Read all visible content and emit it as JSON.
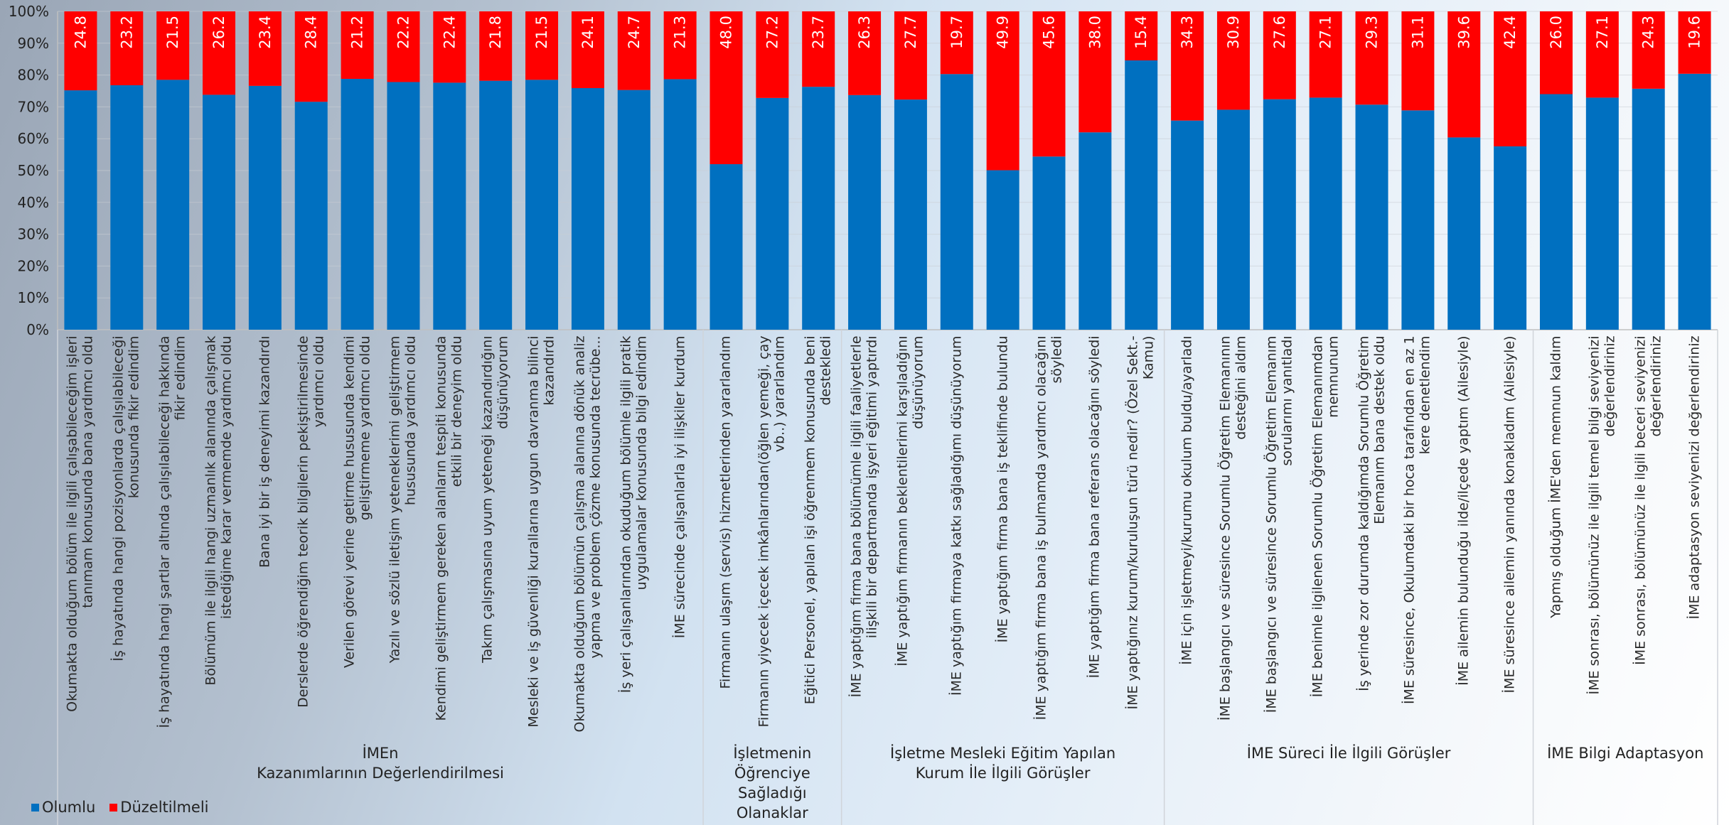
{
  "chart_data": {
    "type": "stacked_bar",
    "groups": [
      {
        "name": "İMEn\nKazanımlarının Değerlendirilmesi",
        "categories": [
          "Okumakta olduğum bölüm ile ilgili çalışabileceğim işleri tanımam konusunda bana yardımcı oldu",
          "İş hayatında hangi pozisyonlarda çalışılabileceği konusunda fikir edindim",
          "İş hayatında hangi şartlar altında çalışılabileceği hakkında fikir edindim",
          "Bölümüm ile ilgili hangi uzmanlık alanında çalışmak istediğime karar vermemde yardımcı oldu",
          "Bana iyi bir iş deneyimi kazandırdı",
          "Derslerde öğrendiğim teorik bilgilerin pekiştirilmesinde yardımcı oldu",
          "Verilen görevi yerine getirme hususunda kendimi geliştirmeme yardımcı oldu",
          "Yazılı ve sözlü iletişim yeteneklerimi geliştirmem hususunda yardımcı oldu",
          "Kendimi geliştirmem gereken alanların tespiti konusunda etkili bir deneyim oldu",
          "Takım çalışmasına uyum yeteneği kazandırdığını düşünüyorum",
          "Mesleki ve iş güvenliği kurallarına uygun davranma bilinci kazandırdı",
          "Okumakta olduğum bölümün çalışma alanına dönük analiz yapma ve problem çözme konusunda tecrübe...",
          "İş yeri çalışanlarından okuduğum bölümle ilgili pratik uygulamalar konusunda bilgi edindim",
          "İME sürecinde çalışanlarla iyi ilişkiler kurdum"
        ]
      },
      {
        "name": "İşletmenin\nÖğrenciye\nSağladığı\nOlanaklar",
        "categories": [
          "Firmanın ulaşım (servis) hizmetlerinden yararlandım",
          "Firmanın yiyecek içecek imkânlarından(öğlen yemeği, çay vb..) yararlandım",
          "Eğitici Personel, yapılan işi öğrenmem konusunda beni destekledi"
        ]
      },
      {
        "name": "İşletme Mesleki Eğitim Yapılan\nKurum İle İlgili Görüşler",
        "categories": [
          "İME yaptığım firma bana bölümümle ilgili faaliyetlerle ilişkili bir departmanda işyeri eğitimi yaptırdı",
          "İME yaptığım firmanın beklentilerimi karşıladığını düşünüyorum",
          "İME  yaptığım firmaya katkı sağladığımı düşünüyorum",
          "İME  yaptığım firma bana iş teklifinde bulundu",
          "İME  yaptığım firma bana iş bulmamda yardımcı olacağını söyledi",
          "İME yaptığım firma bana referans olacağını söyledi",
          "İME yaptığınız kurum/kuruluşun türü nedir? (Özel Sekt.-Kamu)"
        ]
      },
      {
        "name": "İME Süreci İle İlgili Görüşler",
        "categories": [
          "İME için işletmeyi/kurumu okulum buldu/ayarladı",
          "İME başlangıcı ve süresince Sorumlu Öğretim Elemanının desteğini aldım",
          "İME başlangıcı ve süresince Sorumlu Öğretim Elemanım sorularımı yanıtladı",
          "İME benimle ilgilenen Sorumlu Öğretim Elemanımdan memnunum",
          "İş yerinde zor durumda kaldığımda Sorumlu Öğretim Elemanım bana destek oldu",
          "İME süresince, Okulumdaki bir hoca tarafından en az 1 kere denetlendim",
          "İME ailemin bulunduğu ilde/ilçede yaptım (Ailesiyle)",
          "İME süresince ailemin yanında konakladım (Ailesiyle)"
        ]
      },
      {
        "name": "İME Bilgi Adaptasyon",
        "categories": [
          "Yapmış olduğum İME'den memnun kaldım",
          "İME sonrası, bölümünüz ile ilgili temel bilgi seviyenizi değerlendiriniz",
          "İME sonrası, bölümünüz ile ilgili beceri seviyenizi değerlendiriniz",
          "İME adaptasyon seviyenizi değerlendiriniz"
        ]
      }
    ],
    "series": [
      {
        "name": "Olumlu",
        "color": "#0070c0",
        "values": [
          75.2,
          76.8,
          78.5,
          73.8,
          76.6,
          71.6,
          78.8,
          77.8,
          77.6,
          78.2,
          78.5,
          75.9,
          75.3,
          78.7,
          52,
          72.8,
          76.3,
          73.7,
          72.3,
          80.3,
          50.1,
          54.4,
          62,
          84.6,
          65.7,
          69.1,
          72.4,
          72.9,
          70.7,
          68.9,
          60.4,
          57.6,
          74,
          72.9,
          75.7,
          80.4
        ]
      },
      {
        "name": "Düzeltilmeli",
        "color": "#ff0000",
        "values": [
          24.8,
          23.2,
          21.5,
          26.2,
          23.4,
          28.4,
          21.2,
          22.2,
          22.4,
          21.8,
          21.5,
          24.1,
          24.7,
          21.3,
          48,
          27.2,
          23.7,
          26.3,
          27.7,
          19.7,
          49.9,
          45.6,
          38,
          15.4,
          34.3,
          30.9,
          27.6,
          27.1,
          29.3,
          31.1,
          39.6,
          42.4,
          26,
          27.1,
          24.3,
          19.6
        ],
        "value_labels": [
          "24.8",
          "23.2",
          "21.5",
          "26.2",
          "23.4",
          "28.4",
          "21.2",
          "22.2",
          "22.4",
          "21.8",
          "21.5",
          "24.1",
          "24.7",
          "21.3",
          "48.0",
          "27.2",
          "23.7",
          "26.3",
          "27.7",
          "19.7",
          "49.9",
          "45.6",
          "38.0",
          "15.4",
          "34.3",
          "30.9",
          "27.6",
          "27.1",
          "29.3",
          "31.1",
          "39.6",
          "42.4",
          "26.0",
          "27.1",
          "24.3",
          "19.6"
        ]
      }
    ],
    "ylim": [
      0,
      100
    ],
    "yticks": [
      {
        "value": 0,
        "label": "0%"
      },
      {
        "value": 10,
        "label": "10%"
      },
      {
        "value": 20,
        "label": "20%"
      },
      {
        "value": 30,
        "label": "30%"
      },
      {
        "value": 40,
        "label": "40%"
      },
      {
        "value": 50,
        "label": "50%"
      },
      {
        "value": 60,
        "label": "60%"
      },
      {
        "value": 70,
        "label": "70%"
      },
      {
        "value": 80,
        "label": "80%"
      },
      {
        "value": 90,
        "label": "90%"
      },
      {
        "value": 100,
        "label": "100%"
      }
    ],
    "grid": true,
    "legend": "bottom-left"
  }
}
